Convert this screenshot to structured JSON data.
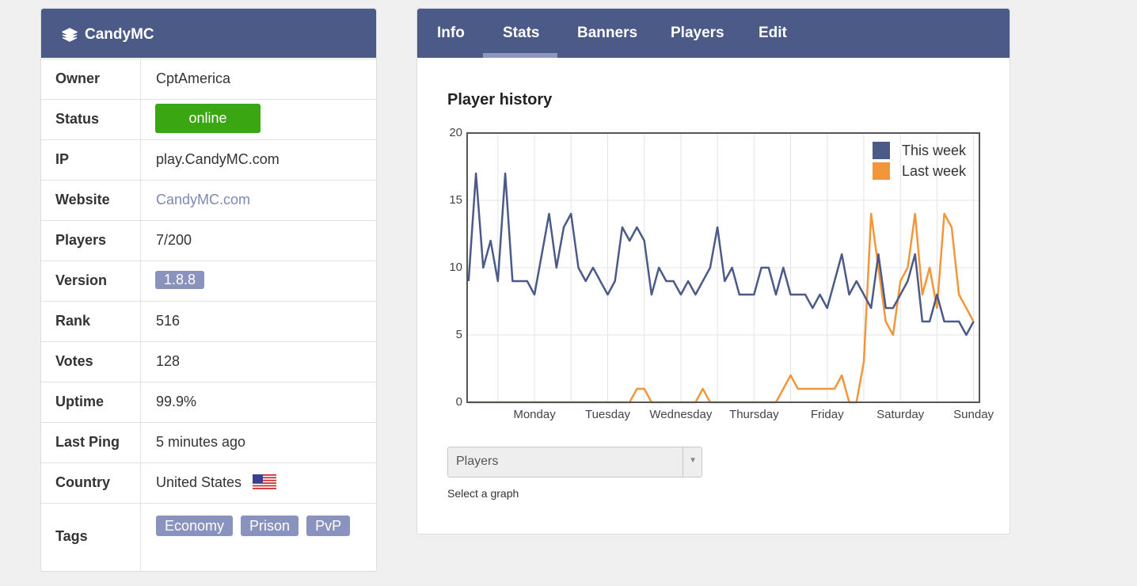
{
  "server": {
    "name": "CandyMC",
    "rows": [
      {
        "label": "Owner",
        "value": "CptAmerica"
      },
      {
        "label": "Status",
        "value": "online"
      },
      {
        "label": "IP",
        "value": "play.CandyMC.com"
      },
      {
        "label": "Website",
        "value": "CandyMC.com"
      },
      {
        "label": "Players",
        "value": "7/200"
      },
      {
        "label": "Version",
        "value": "1.8.8"
      },
      {
        "label": "Rank",
        "value": "516"
      },
      {
        "label": "Votes",
        "value": "128"
      },
      {
        "label": "Uptime",
        "value": "99.9%"
      },
      {
        "label": "Last Ping",
        "value": "5 minutes ago"
      },
      {
        "label": "Country",
        "value": "United States"
      },
      {
        "label": "Tags",
        "value": [
          "Economy",
          "Prison",
          "PvP"
        ]
      }
    ]
  },
  "tabs": [
    "Info",
    "Stats",
    "Banners",
    "Players",
    "Edit"
  ],
  "active_tab": 1,
  "chart_data": {
    "type": "line",
    "title": "Player history",
    "x": [
      0.1,
      0.2,
      0.3,
      0.4,
      0.5,
      0.6,
      0.7,
      0.8,
      0.9,
      1.0,
      1.1,
      1.2,
      1.3,
      1.4,
      1.5,
      1.6,
      1.7,
      1.8,
      1.9,
      2.0,
      2.1,
      2.2,
      2.3,
      2.4,
      2.5,
      2.6,
      2.7,
      2.8,
      2.9,
      3.0,
      3.1,
      3.2,
      3.3,
      3.4,
      3.5,
      3.6,
      3.7,
      3.8,
      3.9,
      4.0,
      4.1,
      4.2,
      4.3,
      4.4,
      4.5,
      4.6,
      4.7,
      4.8,
      4.9,
      5.0,
      5.1,
      5.2,
      5.3,
      5.4,
      5.5,
      5.6,
      5.7,
      5.8,
      5.9,
      6.0,
      6.1,
      6.2,
      6.3,
      6.4,
      6.5,
      6.6,
      6.7,
      6.8,
      6.9,
      7.0
    ],
    "series": [
      {
        "name": "This week",
        "color": "#4c5a88",
        "values": [
          9,
          17,
          10,
          12,
          9,
          17,
          9,
          9,
          9,
          8,
          11,
          14,
          10,
          13,
          14,
          10,
          9,
          10,
          9,
          8,
          9,
          13,
          12,
          13,
          12,
          8,
          10,
          9,
          9,
          8,
          9,
          8,
          9,
          10,
          13,
          9,
          10,
          8,
          8,
          8,
          10,
          10,
          8,
          10,
          8,
          8,
          8,
          7,
          8,
          7,
          9,
          11,
          8,
          9,
          8,
          7,
          11,
          7,
          7,
          8,
          9,
          11,
          6,
          6,
          8,
          6,
          6,
          6,
          5,
          6
        ]
      },
      {
        "name": "Last week",
        "color": "#f3963a",
        "values": [
          0,
          0,
          0,
          0,
          0,
          0,
          0,
          0,
          0,
          0,
          0,
          0,
          0,
          0,
          0,
          0,
          0,
          0,
          0,
          0,
          0,
          0,
          0,
          1,
          1,
          0,
          0,
          0,
          0,
          0,
          0,
          0,
          1,
          0,
          0,
          0,
          0,
          0,
          0,
          0,
          0,
          0,
          0,
          1,
          2,
          1,
          1,
          1,
          1,
          1,
          1,
          2,
          0,
          0,
          3,
          14,
          10,
          6,
          5,
          9,
          10,
          14,
          8,
          10,
          7,
          14,
          13,
          8,
          7,
          6
        ]
      }
    ],
    "xlim": [
      0.08,
      7.08
    ],
    "xticks": [
      {
        "value": 1,
        "label": "Monday"
      },
      {
        "value": 2,
        "label": "Tuesday"
      },
      {
        "value": 3,
        "label": "Wednesday"
      },
      {
        "value": 4,
        "label": "Thursday"
      },
      {
        "value": 5,
        "label": "Friday"
      },
      {
        "value": 6,
        "label": "Saturday"
      },
      {
        "value": 7,
        "label": "Sunday"
      }
    ],
    "xminorticks": [
      0.5,
      1.5,
      2.5,
      3.5,
      4.5,
      5.5,
      6.5
    ],
    "ylim": [
      0,
      20
    ],
    "yticks": [
      0,
      5,
      10,
      15,
      20
    ],
    "grid": true,
    "legend": "upper right"
  },
  "select": {
    "value": "Players",
    "caption": "Select a graph"
  }
}
